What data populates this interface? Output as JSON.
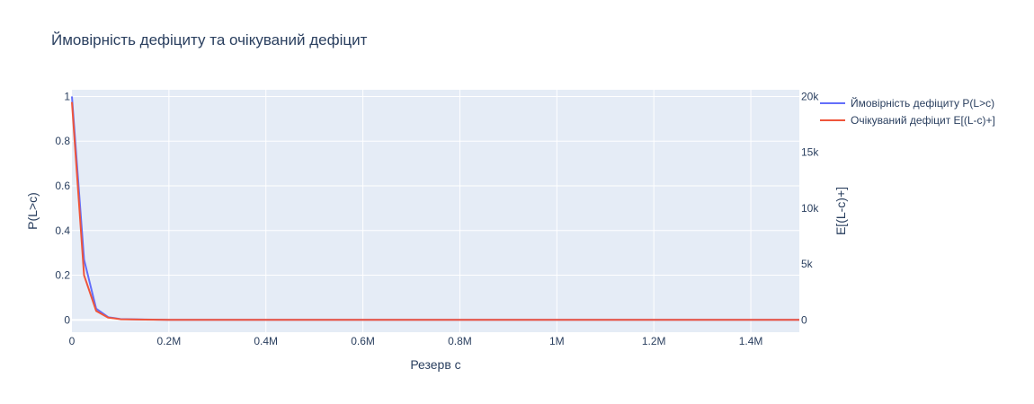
{
  "chart_data": {
    "type": "line",
    "title": "Ймовірність дефіциту та очікуваний дефіцит",
    "xlabel": "Резерв c",
    "ylabel": "P(L>c)",
    "y2label": "E[(L-c)+]",
    "xlim": [
      0,
      1500000
    ],
    "ylim": [
      -0.055,
      1.03
    ],
    "y2lim": [
      -1100,
      20600
    ],
    "x_ticks": [
      0,
      200000,
      400000,
      600000,
      800000,
      1000000,
      1200000,
      1400000
    ],
    "x_tick_labels": [
      "0",
      "0.2M",
      "0.4M",
      "0.6M",
      "0.8M",
      "1M",
      "1.2M",
      "1.4M"
    ],
    "y_ticks": [
      0,
      0.2,
      0.4,
      0.6,
      0.8,
      1
    ],
    "y_tick_labels": [
      "0",
      "0.2",
      "0.4",
      "0.6",
      "0.8",
      "1"
    ],
    "y2_ticks": [
      0,
      5000,
      10000,
      15000,
      20000
    ],
    "y2_tick_labels": [
      "0",
      "5k",
      "10k",
      "15k",
      "20k"
    ],
    "grid": true,
    "legend_position": "top-right",
    "series": [
      {
        "name": "Ймовірність дефіциту P(L>c)",
        "axis": "y",
        "color": "#636efa",
        "x": [
          0,
          25000,
          50000,
          75000,
          100000,
          150000,
          200000,
          300000,
          500000,
          1000000,
          1500000
        ],
        "values": [
          1.0,
          0.27,
          0.05,
          0.012,
          0.004,
          0.002,
          0.0005,
          0.0,
          0.0,
          0.0,
          0.0
        ]
      },
      {
        "name": "Очікуваний дефіцит E[(L-c)+]",
        "axis": "y2",
        "color": "#ef553b",
        "x": [
          0,
          25000,
          50000,
          75000,
          100000,
          150000,
          200000,
          300000,
          500000,
          1000000,
          1500000
        ],
        "values": [
          19500,
          4000,
          800,
          200,
          60,
          20,
          5,
          0,
          0,
          0,
          0
        ]
      }
    ]
  }
}
